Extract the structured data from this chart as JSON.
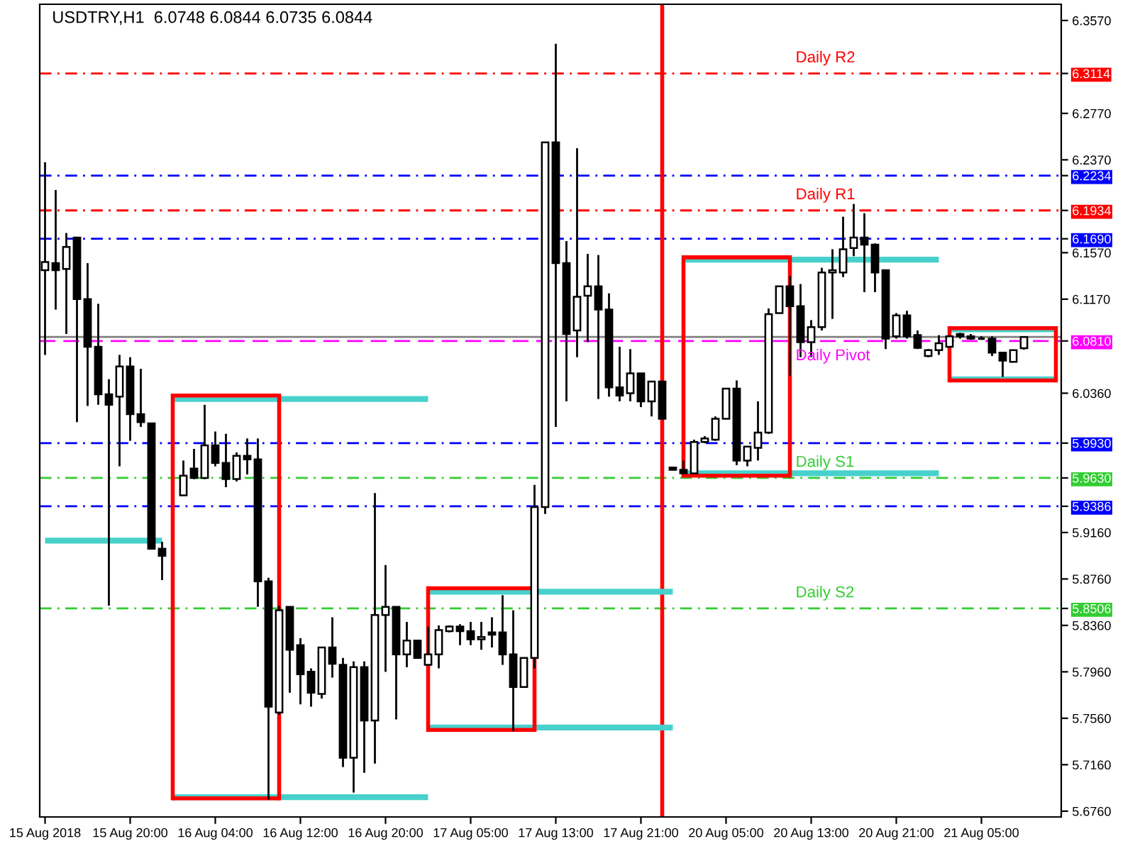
{
  "chart_data": {
    "type": "candlestick",
    "title": "USDTRY,H1  6.0748 6.0844 6.0735 6.0844",
    "color": "#000000",
    "categories": [
      "15 Aug 2018",
      null,
      null,
      null,
      null,
      null,
      null,
      null,
      "15 Aug 20:00",
      null,
      null,
      null,
      null,
      null,
      null,
      null,
      "16 Aug 04:00",
      null,
      null,
      null,
      null,
      null,
      null,
      null,
      "16 Aug 12:00",
      null,
      null,
      null,
      null,
      null,
      null,
      null,
      "16 Aug 20:00",
      null,
      null,
      null,
      null,
      null,
      null,
      null,
      "17 Aug 05:00",
      null,
      null,
      null,
      null,
      null,
      null,
      null,
      "17 Aug 13:00",
      null,
      null,
      null,
      null,
      null,
      null,
      null,
      "17 Aug 21:00",
      null,
      null,
      null,
      null,
      null,
      null,
      null,
      "20 Aug 05:00",
      null,
      null,
      null,
      null,
      null,
      null,
      null,
      "20 Aug 13:00",
      null,
      null,
      null,
      null,
      null,
      null,
      null,
      "20 Aug 21:00",
      null,
      null,
      null,
      null,
      null,
      null,
      null,
      "21 Aug 05:00",
      null,
      null,
      null,
      null,
      null,
      null,
      null
    ],
    "ohlc": [
      [
        6.142,
        6.235,
        6.069,
        6.149
      ],
      [
        6.148,
        6.211,
        6.108,
        6.142
      ],
      [
        6.143,
        6.174,
        6.087,
        6.162
      ],
      [
        6.17,
        6.17,
        6.011,
        6.117
      ],
      [
        6.117,
        6.148,
        6.025,
        6.076
      ],
      [
        6.076,
        6.113,
        6.026,
        6.035
      ],
      [
        6.035,
        6.048,
        5.853,
        6.026
      ],
      [
        6.033,
        6.069,
        5.973,
        6.059
      ],
      [
        6.059,
        6.067,
        5.995,
        6.018
      ],
      [
        6.018,
        6.057,
        6.007,
        6.011
      ],
      [
        6.01,
        6.01,
        5.902,
        5.902
      ],
      [
        5.902,
        5.908,
        5.875,
        5.896
      ],
      null,
      [
        5.948,
        5.978,
        5.948,
        5.965
      ],
      [
        5.971,
        5.988,
        5.962,
        5.963
      ],
      [
        5.963,
        6.026,
        5.962,
        5.991
      ],
      [
        5.991,
        6.003,
        5.973,
        5.976
      ],
      [
        5.976,
        6.001,
        5.955,
        5.962
      ],
      [
        5.962,
        5.985,
        5.96,
        5.982
      ],
      [
        5.982,
        5.997,
        5.966,
        5.979
      ],
      [
        5.979,
        5.997,
        5.852,
        5.874
      ],
      [
        5.874,
        5.877,
        5.686,
        5.766
      ],
      [
        5.761,
        5.853,
        5.759,
        5.849
      ],
      [
        5.852,
        5.852,
        5.778,
        5.815
      ],
      [
        5.819,
        5.825,
        5.768,
        5.794
      ],
      [
        5.796,
        5.799,
        5.766,
        5.778
      ],
      [
        5.777,
        5.817,
        5.773,
        5.817
      ],
      [
        5.817,
        5.843,
        5.791,
        5.803
      ],
      [
        5.802,
        5.808,
        5.714,
        5.722
      ],
      [
        5.722,
        5.805,
        5.692,
        5.8
      ],
      [
        5.8,
        5.805,
        5.709,
        5.754
      ],
      [
        5.754,
        5.95,
        5.717,
        5.845
      ],
      [
        5.845,
        5.888,
        5.796,
        5.852
      ],
      [
        5.852,
        5.852,
        5.755,
        5.811
      ],
      [
        5.811,
        5.839,
        5.8,
        5.823
      ],
      [
        5.823,
        5.823,
        5.808,
        5.808
      ],
      [
        5.802,
        5.835,
        5.802,
        5.811
      ],
      [
        5.811,
        5.836,
        5.799,
        5.832
      ],
      [
        5.831,
        5.836,
        5.83,
        5.835
      ],
      [
        5.835,
        5.837,
        5.819,
        5.831
      ],
      [
        5.831,
        5.839,
        5.819,
        5.824
      ],
      [
        5.824,
        5.839,
        5.815,
        5.826
      ],
      [
        5.83,
        5.843,
        5.817,
        5.828
      ],
      [
        5.83,
        5.862,
        5.802,
        5.811
      ],
      [
        5.811,
        5.849,
        5.745,
        5.783
      ],
      [
        5.783,
        5.808,
        5.783,
        5.808
      ],
      [
        5.808,
        5.957,
        5.799,
        5.938
      ],
      [
        5.938,
        6.252,
        5.932,
        6.252
      ],
      [
        6.252,
        6.337,
        6.007,
        6.148
      ],
      [
        6.148,
        6.167,
        6.029,
        6.087
      ],
      [
        6.09,
        6.247,
        6.067,
        6.119
      ],
      [
        6.12,
        6.156,
        6.08,
        6.128
      ],
      [
        6.128,
        6.155,
        6.031,
        6.108
      ],
      [
        6.108,
        6.122,
        6.033,
        6.041
      ],
      [
        6.041,
        6.076,
        6.029,
        6.034
      ],
      [
        6.036,
        6.074,
        6.029,
        6.053
      ],
      [
        6.053,
        6.053,
        6.024,
        6.029
      ],
      [
        6.029,
        6.046,
        6.016,
        6.046
      ],
      [
        6.046,
        6.046,
        6.014,
        6.014
      ],
      [
        5.972,
        5.972,
        5.97,
        5.97
      ],
      [
        5.97,
        5.978,
        5.966,
        5.967
      ],
      [
        5.967,
        5.996,
        5.967,
        5.994
      ],
      [
        5.994,
        5.999,
        5.993,
        5.997
      ],
      [
        5.996,
        6.016,
        5.995,
        6.014
      ],
      [
        6.014,
        6.04,
        6.014,
        6.04
      ],
      [
        6.04,
        6.047,
        5.974,
        5.978
      ],
      [
        5.978,
        5.99,
        5.973,
        5.99
      ],
      [
        5.989,
        6.029,
        5.978,
        6.002
      ],
      [
        6.002,
        6.109,
        6.001,
        6.104
      ],
      [
        6.105,
        6.128,
        6.105,
        6.128
      ],
      [
        6.128,
        6.137,
        6.051,
        6.111
      ],
      [
        6.111,
        6.13,
        6.067,
        6.08
      ],
      [
        6.08,
        6.099,
        6.067,
        6.093
      ],
      [
        6.093,
        6.144,
        6.09,
        6.14
      ],
      [
        6.14,
        6.16,
        6.1,
        6.142
      ],
      [
        6.14,
        6.188,
        6.136,
        6.16
      ],
      [
        6.161,
        6.199,
        6.154,
        6.17
      ],
      [
        6.17,
        6.191,
        6.123,
        6.164
      ],
      [
        6.164,
        6.165,
        6.123,
        6.14
      ],
      [
        6.142,
        6.142,
        6.074,
        6.083
      ],
      [
        6.085,
        6.105,
        6.083,
        6.103
      ],
      [
        6.103,
        6.107,
        6.083,
        6.085
      ],
      [
        6.086,
        6.09,
        6.074,
        6.075
      ],
      [
        6.068,
        6.074,
        6.067,
        6.073
      ],
      [
        6.073,
        6.086,
        6.069,
        6.079
      ],
      [
        6.076,
        6.086,
        6.075,
        6.085
      ],
      [
        6.087,
        6.088,
        6.083,
        6.085
      ],
      [
        6.085,
        6.087,
        6.082,
        6.083
      ],
      [
        6.083,
        6.085,
        6.082,
        6.083
      ],
      [
        6.083,
        6.085,
        6.068,
        6.071
      ],
      [
        6.071,
        6.071,
        6.05,
        6.064
      ],
      [
        6.063,
        6.073,
        6.063,
        6.073
      ],
      [
        6.0748,
        6.0844,
        6.0735,
        6.0844
      ],
      null,
      null,
      null
    ],
    "series": [
      {
        "type": "line",
        "color": "#ff0000",
        "values": [
          null,
          null,
          null,
          null,
          null,
          null,
          null,
          null,
          null,
          null,
          null,
          null,
          6.034,
          6.034,
          6.034,
          6.034,
          6.034,
          6.034,
          6.034,
          6.034,
          6.034,
          6.034,
          6.034,
          null,
          null,
          null,
          null,
          null,
          null,
          null,
          null,
          null,
          null,
          null,
          null,
          null,
          null,
          null,
          null,
          null,
          null,
          null,
          null,
          null,
          null,
          null,
          null,
          null,
          null,
          null,
          null,
          null,
          null,
          null,
          null,
          null,
          null,
          null,
          null,
          null,
          null,
          null,
          null,
          null,
          null,
          null,
          null,
          null,
          null,
          null,
          null,
          null,
          null,
          null,
          null,
          null,
          null,
          null,
          null,
          null,
          null,
          null,
          null,
          null,
          null,
          null,
          null,
          null,
          null,
          null,
          null,
          null,
          null,
          null,
          null,
          null
        ]
      },
      {
        "type": "line",
        "color": "#ff0000",
        "values": [
          null,
          null,
          null,
          null,
          null,
          null,
          null,
          null,
          null,
          null,
          null,
          null,
          5.687,
          5.687,
          5.687,
          5.687,
          5.687,
          5.687,
          5.687,
          5.687,
          5.687,
          5.687,
          5.687,
          null,
          null,
          null,
          null,
          null,
          null,
          null,
          null,
          null,
          null,
          null,
          null,
          null,
          null,
          null,
          null,
          null,
          null,
          null,
          null,
          null,
          null,
          null,
          null,
          null,
          null,
          null,
          null,
          null,
          null,
          null,
          null,
          null,
          null,
          null,
          null,
          null,
          null,
          null,
          null,
          null,
          null,
          null,
          null,
          null,
          null,
          null,
          null,
          null,
          null,
          null,
          null,
          null,
          null,
          null,
          null,
          null,
          null,
          null,
          null,
          null,
          null,
          null,
          null,
          null,
          null,
          null,
          null,
          null,
          null,
          null,
          null,
          null
        ]
      },
      {
        "type": "line",
        "color": "#ff0000",
        "values": [
          null,
          null,
          null,
          null,
          null,
          null,
          null,
          null,
          null,
          null,
          null,
          null,
          null,
          null,
          null,
          null,
          null,
          null,
          null,
          null,
          null,
          null,
          null,
          null,
          null,
          null,
          null,
          null,
          null,
          null,
          null,
          null,
          null,
          null,
          null,
          null,
          5.868,
          5.868,
          5.868,
          5.868,
          5.868,
          5.868,
          5.868,
          5.868,
          5.868,
          5.868,
          5.868,
          null,
          null,
          null,
          null,
          null,
          null,
          null,
          null,
          null,
          null,
          null,
          null,
          null,
          null,
          null,
          null,
          null,
          null,
          null,
          null,
          null,
          null,
          null,
          null,
          null,
          null,
          null,
          null,
          null,
          null,
          null,
          null,
          null,
          null,
          null,
          null,
          null,
          null,
          null,
          null,
          null,
          null,
          null,
          null,
          null,
          null,
          null,
          null,
          null
        ]
      },
      {
        "type": "line",
        "color": "#ff0000",
        "values": [
          null,
          null,
          null,
          null,
          null,
          null,
          null,
          null,
          null,
          null,
          null,
          null,
          null,
          null,
          null,
          null,
          null,
          null,
          null,
          null,
          null,
          null,
          null,
          null,
          null,
          null,
          null,
          null,
          null,
          null,
          null,
          null,
          null,
          null,
          null,
          null,
          5.746,
          5.746,
          5.746,
          5.746,
          5.746,
          5.746,
          5.746,
          5.746,
          5.746,
          5.746,
          5.746,
          null,
          null,
          null,
          null,
          null,
          null,
          null,
          null,
          null,
          null,
          null,
          null,
          null,
          null,
          null,
          null,
          null,
          null,
          null,
          null,
          null,
          null,
          null,
          null,
          null,
          null,
          null,
          null,
          null,
          null,
          null,
          null,
          null,
          null,
          null,
          null,
          null,
          null,
          null,
          null,
          null,
          null,
          null,
          null,
          null,
          null,
          null,
          null,
          null
        ]
      },
      {
        "type": "line",
        "color": "#ff0000",
        "values": [
          null,
          null,
          null,
          null,
          null,
          null,
          null,
          null,
          null,
          null,
          null,
          null,
          null,
          null,
          null,
          null,
          null,
          null,
          null,
          null,
          null,
          null,
          null,
          null,
          null,
          null,
          null,
          null,
          null,
          null,
          null,
          null,
          null,
          null,
          null,
          null,
          null,
          null,
          null,
          null,
          null,
          null,
          null,
          null,
          null,
          null,
          null,
          null,
          null,
          null,
          null,
          null,
          null,
          null,
          null,
          null,
          null,
          null,
          null,
          null,
          6.153,
          6.153,
          6.153,
          6.153,
          6.153,
          6.153,
          6.153,
          6.153,
          6.153,
          6.153,
          6.153,
          null,
          null,
          null,
          null,
          null,
          null,
          null,
          null,
          null,
          null,
          null,
          null,
          null,
          null,
          null,
          null,
          null,
          null,
          null,
          null,
          null,
          null,
          null,
          null,
          null
        ]
      },
      {
        "type": "line",
        "color": "#ff0000",
        "values": [
          null,
          null,
          null,
          null,
          null,
          null,
          null,
          null,
          null,
          null,
          null,
          null,
          null,
          null,
          null,
          null,
          null,
          null,
          null,
          null,
          null,
          null,
          null,
          null,
          null,
          null,
          null,
          null,
          null,
          null,
          null,
          null,
          null,
          null,
          null,
          null,
          null,
          null,
          null,
          null,
          null,
          null,
          null,
          null,
          null,
          null,
          null,
          null,
          null,
          null,
          null,
          null,
          null,
          null,
          null,
          null,
          null,
          null,
          null,
          null,
          5.965,
          5.965,
          5.965,
          5.965,
          5.965,
          5.965,
          5.965,
          5.965,
          5.965,
          5.965,
          5.965,
          null,
          null,
          null,
          null,
          null,
          null,
          null,
          null,
          null,
          null,
          null,
          null,
          null,
          null,
          null,
          null,
          null,
          null,
          null,
          null,
          null,
          null,
          null,
          null,
          null
        ]
      },
      {
        "type": "line",
        "color": "#ff0000",
        "values": [
          null,
          null,
          null,
          null,
          null,
          null,
          null,
          null,
          null,
          null,
          null,
          null,
          null,
          null,
          null,
          null,
          null,
          null,
          null,
          null,
          null,
          null,
          null,
          null,
          null,
          null,
          null,
          null,
          null,
          null,
          null,
          null,
          null,
          null,
          null,
          null,
          null,
          null,
          null,
          null,
          null,
          null,
          null,
          null,
          null,
          null,
          null,
          null,
          null,
          null,
          null,
          null,
          null,
          null,
          null,
          null,
          null,
          null,
          null,
          null,
          null,
          null,
          null,
          null,
          null,
          null,
          null,
          null,
          null,
          null,
          null,
          null,
          null,
          null,
          null,
          null,
          null,
          null,
          null,
          null,
          null,
          null,
          null,
          null,
          null,
          6.092,
          6.092,
          6.092,
          6.092,
          6.092,
          6.092,
          6.092,
          6.092,
          6.092,
          6.092,
          6.092
        ]
      },
      {
        "type": "line",
        "color": "#ff0000",
        "values": [
          null,
          null,
          null,
          null,
          null,
          null,
          null,
          null,
          null,
          null,
          null,
          null,
          null,
          null,
          null,
          null,
          null,
          null,
          null,
          null,
          null,
          null,
          null,
          null,
          null,
          null,
          null,
          null,
          null,
          null,
          null,
          null,
          null,
          null,
          null,
          null,
          null,
          null,
          null,
          null,
          null,
          null,
          null,
          null,
          null,
          null,
          null,
          null,
          null,
          null,
          null,
          null,
          null,
          null,
          null,
          null,
          null,
          null,
          null,
          null,
          null,
          null,
          null,
          null,
          null,
          null,
          null,
          null,
          null,
          null,
          null,
          null,
          null,
          null,
          null,
          null,
          null,
          null,
          null,
          null,
          null,
          null,
          null,
          null,
          null,
          6.047,
          6.047,
          6.047,
          6.047,
          6.047,
          6.047,
          6.047,
          6.047,
          6.047,
          6.047,
          6.047
        ]
      },
      {
        "type": "line",
        "color": "#48d1cc",
        "values": [
          5.909,
          5.909,
          5.909,
          5.909,
          5.909,
          5.909,
          5.909,
          5.909,
          5.909,
          5.909,
          5.909,
          5.909,
          null,
          null,
          null,
          null,
          null,
          null,
          null,
          null,
          null,
          null,
          null,
          null,
          null,
          null,
          null,
          null,
          null,
          null,
          null,
          null,
          null,
          null,
          null,
          null,
          null,
          null,
          null,
          null,
          null,
          null,
          null,
          null,
          null,
          null,
          null,
          null,
          null,
          null,
          null,
          null,
          null,
          null,
          null,
          null,
          null,
          null,
          null,
          null,
          null,
          null,
          null,
          null,
          null,
          null,
          null,
          null,
          null,
          null,
          null,
          null,
          null,
          null,
          null,
          null,
          null,
          null,
          null,
          null,
          null,
          null,
          null,
          null,
          null,
          null,
          null,
          null,
          null,
          null,
          null,
          null,
          null,
          null,
          null,
          null
        ]
      },
      {
        "type": "line",
        "color": "#48d1cc",
        "values": [
          null,
          null,
          null,
          null,
          null,
          null,
          null,
          null,
          null,
          null,
          null,
          null,
          6.031,
          6.031,
          6.031,
          6.031,
          6.031,
          6.031,
          6.031,
          6.031,
          6.031,
          6.031,
          6.031,
          6.031,
          6.031,
          6.031,
          6.031,
          6.031,
          6.031,
          6.031,
          6.031,
          6.031,
          6.031,
          6.031,
          6.031,
          6.031,
          6.031,
          null,
          null,
          null,
          null,
          null,
          null,
          null,
          null,
          null,
          null,
          null,
          null,
          null,
          null,
          null,
          null,
          null,
          null,
          null,
          null,
          null,
          null,
          null,
          null,
          null,
          null,
          null,
          null,
          null,
          null,
          null,
          null,
          null,
          null,
          null,
          null,
          null,
          null,
          null,
          null,
          null,
          null,
          null,
          null,
          null,
          null,
          null,
          null,
          null,
          null,
          null,
          null,
          null,
          null,
          null,
          null,
          null,
          null,
          null
        ]
      },
      {
        "type": "line",
        "color": "#48d1cc",
        "values": [
          null,
          null,
          null,
          null,
          null,
          null,
          null,
          null,
          null,
          null,
          null,
          null,
          5.688,
          5.688,
          5.688,
          5.688,
          5.688,
          5.688,
          5.688,
          5.688,
          5.688,
          5.688,
          5.688,
          5.688,
          5.688,
          5.688,
          5.688,
          5.688,
          5.688,
          5.688,
          5.688,
          5.688,
          5.688,
          5.688,
          5.688,
          5.688,
          5.688,
          null,
          null,
          null,
          null,
          null,
          null,
          null,
          null,
          null,
          null,
          null,
          null,
          null,
          null,
          null,
          null,
          null,
          null,
          null,
          null,
          null,
          null,
          null,
          null,
          null,
          null,
          null,
          null,
          null,
          null,
          null,
          null,
          null,
          null,
          null,
          null,
          null,
          null,
          null,
          null,
          null,
          null,
          null,
          null,
          null,
          null,
          null,
          null,
          null,
          null,
          null,
          null,
          null,
          null,
          null,
          null,
          null,
          null,
          null
        ]
      },
      {
        "type": "line",
        "color": "#48d1cc",
        "values": [
          null,
          null,
          null,
          null,
          null,
          null,
          null,
          null,
          null,
          null,
          null,
          null,
          null,
          null,
          null,
          null,
          null,
          null,
          null,
          null,
          null,
          null,
          null,
          null,
          null,
          null,
          null,
          null,
          null,
          null,
          null,
          null,
          null,
          null,
          null,
          null,
          5.865,
          5.865,
          5.865,
          5.865,
          5.865,
          5.865,
          5.865,
          5.865,
          5.865,
          5.865,
          5.865,
          5.865,
          5.865,
          5.865,
          5.865,
          5.865,
          5.865,
          5.865,
          5.865,
          5.865,
          5.865,
          5.865,
          5.865,
          5.865,
          null,
          null,
          null,
          null,
          null,
          null,
          null,
          null,
          null,
          null,
          null,
          null,
          null,
          null,
          null,
          null,
          null,
          null,
          null,
          null,
          null,
          null,
          null,
          null,
          null,
          null,
          null,
          null,
          null,
          null,
          null,
          null,
          null,
          null,
          null,
          null
        ]
      },
      {
        "type": "line",
        "color": "#48d1cc",
        "values": [
          null,
          null,
          null,
          null,
          null,
          null,
          null,
          null,
          null,
          null,
          null,
          null,
          null,
          null,
          null,
          null,
          null,
          null,
          null,
          null,
          null,
          null,
          null,
          null,
          null,
          null,
          null,
          null,
          null,
          null,
          null,
          null,
          null,
          null,
          null,
          null,
          5.748,
          5.748,
          5.748,
          5.748,
          5.748,
          5.748,
          5.748,
          5.748,
          5.748,
          5.748,
          5.748,
          5.748,
          5.748,
          5.748,
          5.748,
          5.748,
          5.748,
          5.748,
          5.748,
          5.748,
          5.748,
          5.748,
          5.748,
          5.748,
          null,
          null,
          null,
          null,
          null,
          null,
          null,
          null,
          null,
          null,
          null,
          null,
          null,
          null,
          null,
          null,
          null,
          null,
          null,
          null,
          null,
          null,
          null,
          null,
          null,
          null,
          null,
          null,
          null,
          null,
          null,
          null,
          null,
          null,
          null,
          null
        ]
      },
      {
        "type": "line",
        "color": "#48d1cc",
        "values": [
          null,
          null,
          null,
          null,
          null,
          null,
          null,
          null,
          null,
          null,
          null,
          null,
          null,
          null,
          null,
          null,
          null,
          null,
          null,
          null,
          null,
          null,
          null,
          null,
          null,
          null,
          null,
          null,
          null,
          null,
          null,
          null,
          null,
          null,
          null,
          null,
          null,
          null,
          null,
          null,
          null,
          null,
          null,
          null,
          null,
          null,
          null,
          null,
          null,
          null,
          null,
          null,
          null,
          null,
          null,
          null,
          null,
          null,
          null,
          null,
          6.151,
          6.151,
          6.151,
          6.151,
          6.151,
          6.151,
          6.151,
          6.151,
          6.151,
          6.151,
          6.151,
          6.151,
          6.151,
          6.151,
          6.151,
          6.151,
          6.151,
          6.151,
          6.151,
          6.151,
          6.151,
          6.151,
          6.151,
          6.151,
          6.151,
          null,
          null,
          null,
          null,
          null,
          null,
          null,
          null,
          null,
          null,
          null
        ]
      },
      {
        "type": "line",
        "color": "#48d1cc",
        "values": [
          null,
          null,
          null,
          null,
          null,
          null,
          null,
          null,
          null,
          null,
          null,
          null,
          null,
          null,
          null,
          null,
          null,
          null,
          null,
          null,
          null,
          null,
          null,
          null,
          null,
          null,
          null,
          null,
          null,
          null,
          null,
          null,
          null,
          null,
          null,
          null,
          null,
          null,
          null,
          null,
          null,
          null,
          null,
          null,
          null,
          null,
          null,
          null,
          null,
          null,
          null,
          null,
          null,
          null,
          null,
          null,
          null,
          null,
          null,
          null,
          5.967,
          5.967,
          5.967,
          5.967,
          5.967,
          5.967,
          5.967,
          5.967,
          5.967,
          5.967,
          5.967,
          5.967,
          5.967,
          5.967,
          5.967,
          5.967,
          5.967,
          5.967,
          5.967,
          5.967,
          5.967,
          5.967,
          5.967,
          5.967,
          5.967,
          null,
          null,
          null,
          null,
          null,
          null,
          null,
          null,
          null,
          null,
          null
        ]
      },
      {
        "type": "line",
        "color": "#48d1cc",
        "values": [
          null,
          null,
          null,
          null,
          null,
          null,
          null,
          null,
          null,
          null,
          null,
          null,
          null,
          null,
          null,
          null,
          null,
          null,
          null,
          null,
          null,
          null,
          null,
          null,
          null,
          null,
          null,
          null,
          null,
          null,
          null,
          null,
          null,
          null,
          null,
          null,
          null,
          null,
          null,
          null,
          null,
          null,
          null,
          null,
          null,
          null,
          null,
          null,
          null,
          null,
          null,
          null,
          null,
          null,
          null,
          null,
          null,
          null,
          null,
          null,
          null,
          null,
          null,
          null,
          null,
          null,
          null,
          null,
          null,
          null,
          null,
          null,
          null,
          null,
          null,
          null,
          null,
          null,
          null,
          null,
          null,
          null,
          null,
          null,
          null,
          6.091,
          6.091,
          6.091,
          6.091,
          6.091,
          6.091,
          6.091,
          6.091,
          6.091,
          6.091,
          6.091
        ]
      },
      {
        "type": "line",
        "color": "#48d1cc",
        "values": [
          null,
          null,
          null,
          null,
          null,
          null,
          null,
          null,
          null,
          null,
          null,
          null,
          null,
          null,
          null,
          null,
          null,
          null,
          null,
          null,
          null,
          null,
          null,
          null,
          null,
          null,
          null,
          null,
          null,
          null,
          null,
          null,
          null,
          null,
          null,
          null,
          null,
          null,
          null,
          null,
          null,
          null,
          null,
          null,
          null,
          null,
          null,
          null,
          null,
          null,
          null,
          null,
          null,
          null,
          null,
          null,
          null,
          null,
          null,
          null,
          null,
          null,
          null,
          null,
          null,
          null,
          null,
          null,
          null,
          null,
          null,
          null,
          null,
          null,
          null,
          null,
          null,
          null,
          null,
          null,
          null,
          null,
          null,
          null,
          null,
          6.048,
          6.048,
          6.048,
          6.048,
          6.048,
          6.048,
          6.048,
          6.048,
          6.048,
          6.048,
          6.048
        ]
      }
    ],
    "ref_lines": [
      {
        "axis": "y",
        "value": 6.3114,
        "label": "Daily R2",
        "color": "#ff0000",
        "line_style": "dashdot"
      },
      {
        "axis": "y",
        "value": 6.2234,
        "color": "#0000ff",
        "line_style": "dashdot"
      },
      {
        "axis": "y",
        "value": 6.1934,
        "label": "Daily R1",
        "color": "#ff0000",
        "line_style": "dashdot"
      },
      {
        "axis": "y",
        "value": 6.169,
        "color": "#0000ff",
        "line_style": "dashdot"
      },
      {
        "axis": "y",
        "value": 6.0844,
        "color": "#808080",
        "line_style": "solid"
      },
      {
        "axis": "y",
        "value": 6.081,
        "label": "Daily Pivot",
        "color": "#ff00ff",
        "line_style": "dashed"
      },
      {
        "axis": "y",
        "value": 5.993,
        "color": "#0000ff",
        "line_style": "dashdot"
      },
      {
        "axis": "y",
        "value": 5.963,
        "label": "Daily S1",
        "color": "#32cd32",
        "line_style": "dashdot"
      },
      {
        "axis": "y",
        "value": 5.9386,
        "color": "#0000ff",
        "line_style": "dashdot"
      },
      {
        "axis": "y",
        "value": 5.8506,
        "label": "Daily S2",
        "color": "#32cd32",
        "line_style": "dashdot"
      }
    ],
    "ylim": [
      5.671,
      6.371
    ],
    "yticks": [
      {
        "value": 6.357,
        "label": "6.3570"
      },
      {
        "value": 6.3114,
        "label": "6.3114"
      },
      {
        "value": 6.277,
        "label": "6.2770"
      },
      {
        "value": 6.2234,
        "label": "6.2234"
      },
      {
        "value": 6.1934,
        "label": "6.1934"
      },
      {
        "value": 6.169,
        "label": "6.1690"
      },
      {
        "value": 6.081,
        "label": "6.0810"
      },
      {
        "value": 5.993,
        "label": "5.9930"
      },
      {
        "value": 5.963,
        "label": "5.9630"
      },
      {
        "value": 5.9386,
        "label": "5.9386"
      },
      {
        "value": 5.8506,
        "label": "5.8506"
      },
      {
        "value": 6.237,
        "label": "6.2370"
      },
      {
        "value": 6.157,
        "label": "6.1570"
      },
      {
        "value": 6.117,
        "label": "6.1170"
      },
      {
        "value": 6.036,
        "label": "6.0360"
      },
      {
        "value": 5.916,
        "label": "5.9160"
      },
      {
        "value": 5.876,
        "label": "5.8760"
      },
      {
        "value": 5.836,
        "label": "5.8360"
      },
      {
        "value": 5.796,
        "label": "5.7960"
      },
      {
        "value": 5.756,
        "label": "5.7560"
      },
      {
        "value": 5.716,
        "label": "5.7160"
      },
      {
        "value": 5.676,
        "label": "5.6760"
      }
    ],
    "grid": false,
    "legend": false
  }
}
